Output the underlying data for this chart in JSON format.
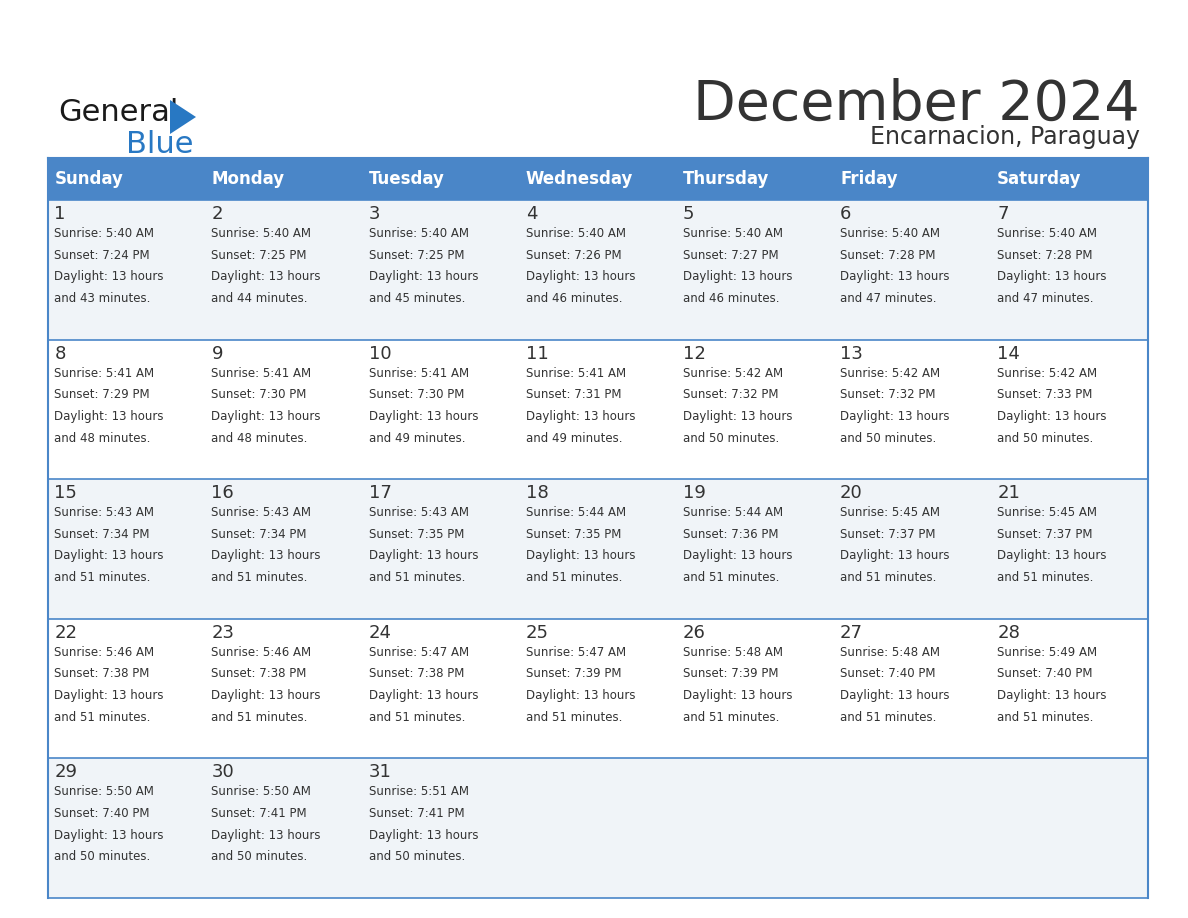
{
  "title": "December 2024",
  "subtitle": "Encarnacion, Paraguay",
  "header_color": "#4a86c8",
  "header_text_color": "#ffffff",
  "border_color": "#4a86c8",
  "row_separator_color": "#4a86c8",
  "text_color": "#333333",
  "cell_bg_even": "#f0f4f8",
  "cell_bg_odd": "#ffffff",
  "days_of_week": [
    "Sunday",
    "Monday",
    "Tuesday",
    "Wednesday",
    "Thursday",
    "Friday",
    "Saturday"
  ],
  "weeks": [
    [
      {
        "day": 1,
        "sunrise": "5:40 AM",
        "sunset": "7:24 PM",
        "daylight_h": "13 hours",
        "daylight_m": "and 43 minutes."
      },
      {
        "day": 2,
        "sunrise": "5:40 AM",
        "sunset": "7:25 PM",
        "daylight_h": "13 hours",
        "daylight_m": "and 44 minutes."
      },
      {
        "day": 3,
        "sunrise": "5:40 AM",
        "sunset": "7:25 PM",
        "daylight_h": "13 hours",
        "daylight_m": "and 45 minutes."
      },
      {
        "day": 4,
        "sunrise": "5:40 AM",
        "sunset": "7:26 PM",
        "daylight_h": "13 hours",
        "daylight_m": "and 46 minutes."
      },
      {
        "day": 5,
        "sunrise": "5:40 AM",
        "sunset": "7:27 PM",
        "daylight_h": "13 hours",
        "daylight_m": "and 46 minutes."
      },
      {
        "day": 6,
        "sunrise": "5:40 AM",
        "sunset": "7:28 PM",
        "daylight_h": "13 hours",
        "daylight_m": "and 47 minutes."
      },
      {
        "day": 7,
        "sunrise": "5:40 AM",
        "sunset": "7:28 PM",
        "daylight_h": "13 hours",
        "daylight_m": "and 47 minutes."
      }
    ],
    [
      {
        "day": 8,
        "sunrise": "5:41 AM",
        "sunset": "7:29 PM",
        "daylight_h": "13 hours",
        "daylight_m": "and 48 minutes."
      },
      {
        "day": 9,
        "sunrise": "5:41 AM",
        "sunset": "7:30 PM",
        "daylight_h": "13 hours",
        "daylight_m": "and 48 minutes."
      },
      {
        "day": 10,
        "sunrise": "5:41 AM",
        "sunset": "7:30 PM",
        "daylight_h": "13 hours",
        "daylight_m": "and 49 minutes."
      },
      {
        "day": 11,
        "sunrise": "5:41 AM",
        "sunset": "7:31 PM",
        "daylight_h": "13 hours",
        "daylight_m": "and 49 minutes."
      },
      {
        "day": 12,
        "sunrise": "5:42 AM",
        "sunset": "7:32 PM",
        "daylight_h": "13 hours",
        "daylight_m": "and 50 minutes."
      },
      {
        "day": 13,
        "sunrise": "5:42 AM",
        "sunset": "7:32 PM",
        "daylight_h": "13 hours",
        "daylight_m": "and 50 minutes."
      },
      {
        "day": 14,
        "sunrise": "5:42 AM",
        "sunset": "7:33 PM",
        "daylight_h": "13 hours",
        "daylight_m": "and 50 minutes."
      }
    ],
    [
      {
        "day": 15,
        "sunrise": "5:43 AM",
        "sunset": "7:34 PM",
        "daylight_h": "13 hours",
        "daylight_m": "and 51 minutes."
      },
      {
        "day": 16,
        "sunrise": "5:43 AM",
        "sunset": "7:34 PM",
        "daylight_h": "13 hours",
        "daylight_m": "and 51 minutes."
      },
      {
        "day": 17,
        "sunrise": "5:43 AM",
        "sunset": "7:35 PM",
        "daylight_h": "13 hours",
        "daylight_m": "and 51 minutes."
      },
      {
        "day": 18,
        "sunrise": "5:44 AM",
        "sunset": "7:35 PM",
        "daylight_h": "13 hours",
        "daylight_m": "and 51 minutes."
      },
      {
        "day": 19,
        "sunrise": "5:44 AM",
        "sunset": "7:36 PM",
        "daylight_h": "13 hours",
        "daylight_m": "and 51 minutes."
      },
      {
        "day": 20,
        "sunrise": "5:45 AM",
        "sunset": "7:37 PM",
        "daylight_h": "13 hours",
        "daylight_m": "and 51 minutes."
      },
      {
        "day": 21,
        "sunrise": "5:45 AM",
        "sunset": "7:37 PM",
        "daylight_h": "13 hours",
        "daylight_m": "and 51 minutes."
      }
    ],
    [
      {
        "day": 22,
        "sunrise": "5:46 AM",
        "sunset": "7:38 PM",
        "daylight_h": "13 hours",
        "daylight_m": "and 51 minutes."
      },
      {
        "day": 23,
        "sunrise": "5:46 AM",
        "sunset": "7:38 PM",
        "daylight_h": "13 hours",
        "daylight_m": "and 51 minutes."
      },
      {
        "day": 24,
        "sunrise": "5:47 AM",
        "sunset": "7:38 PM",
        "daylight_h": "13 hours",
        "daylight_m": "and 51 minutes."
      },
      {
        "day": 25,
        "sunrise": "5:47 AM",
        "sunset": "7:39 PM",
        "daylight_h": "13 hours",
        "daylight_m": "and 51 minutes."
      },
      {
        "day": 26,
        "sunrise": "5:48 AM",
        "sunset": "7:39 PM",
        "daylight_h": "13 hours",
        "daylight_m": "and 51 minutes."
      },
      {
        "day": 27,
        "sunrise": "5:48 AM",
        "sunset": "7:40 PM",
        "daylight_h": "13 hours",
        "daylight_m": "and 51 minutes."
      },
      {
        "day": 28,
        "sunrise": "5:49 AM",
        "sunset": "7:40 PM",
        "daylight_h": "13 hours",
        "daylight_m": "and 51 minutes."
      }
    ],
    [
      {
        "day": 29,
        "sunrise": "5:50 AM",
        "sunset": "7:40 PM",
        "daylight_h": "13 hours",
        "daylight_m": "and 50 minutes."
      },
      {
        "day": 30,
        "sunrise": "5:50 AM",
        "sunset": "7:41 PM",
        "daylight_h": "13 hours",
        "daylight_m": "and 50 minutes."
      },
      {
        "day": 31,
        "sunrise": "5:51 AM",
        "sunset": "7:41 PM",
        "daylight_h": "13 hours",
        "daylight_m": "and 50 minutes."
      },
      null,
      null,
      null,
      null
    ]
  ],
  "logo_general_color": "#1a1a1a",
  "logo_blue_color": "#2878c3",
  "logo_triangle_color": "#2878c3",
  "title_fontsize": 40,
  "subtitle_fontsize": 17,
  "header_fontsize": 12,
  "day_num_fontsize": 13,
  "cell_text_fontsize": 8.5
}
